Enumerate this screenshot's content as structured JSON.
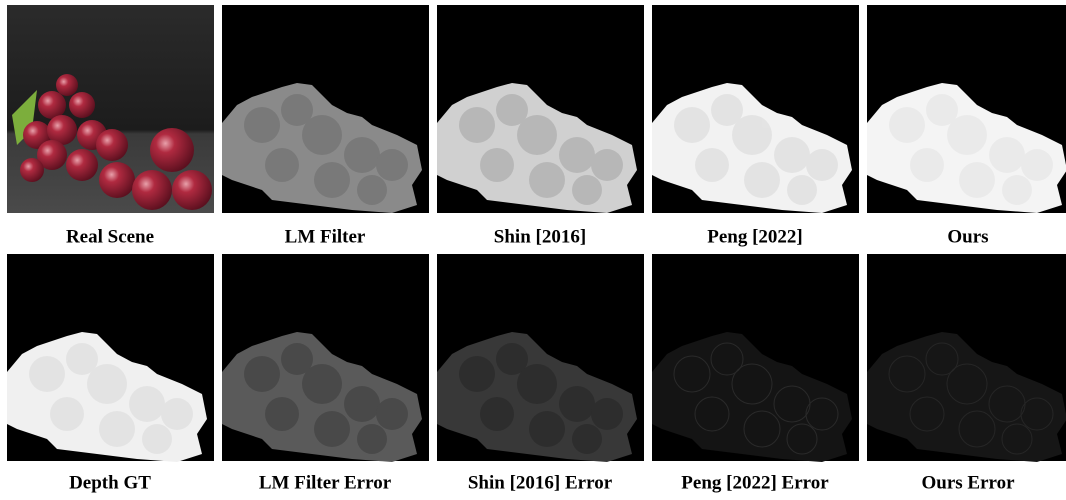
{
  "grid": {
    "rows": [
      {
        "panels": [
          {
            "caption": "Real Scene"
          },
          {
            "caption": "LM Filter"
          },
          {
            "caption": "Shin [2016]"
          },
          {
            "caption": "Peng [2022]"
          },
          {
            "caption": "Ours"
          }
        ]
      },
      {
        "panels": [
          {
            "caption": "Depth GT"
          },
          {
            "caption": "LM Filter Error"
          },
          {
            "caption": "Shin [2016] Error"
          },
          {
            "caption": "Peng [2022] Error"
          },
          {
            "caption": "Ours Error"
          }
        ]
      }
    ]
  }
}
